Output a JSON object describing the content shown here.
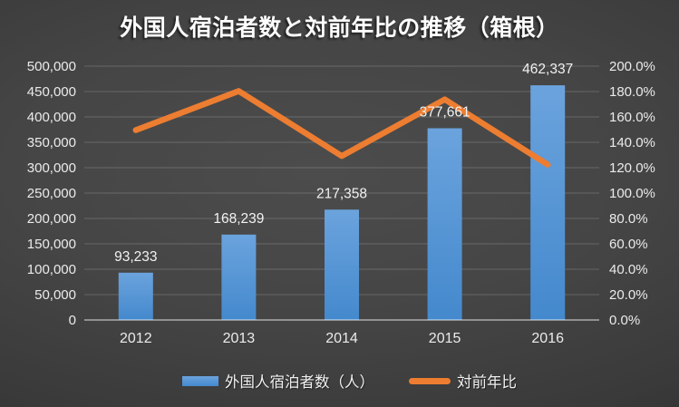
{
  "title": "外国人宿泊者数と対前年比の推移（箱根）",
  "chart_data": {
    "type": "bar",
    "subtype": "combo-bar-line",
    "title": "外国人宿泊者数と対前年比の推移（箱根）",
    "categories": [
      "2012",
      "2013",
      "2014",
      "2015",
      "2016"
    ],
    "series": [
      {
        "name": "外国人宿泊者数（人）",
        "type": "bar",
        "axis": "left",
        "values": [
          93233,
          168239,
          217358,
          377661,
          462337
        ],
        "data_labels": [
          "93,233",
          "168,239",
          "217,358",
          "377,661",
          "462,337"
        ]
      },
      {
        "name": "対前年比",
        "type": "line",
        "axis": "right",
        "values_percent": [
          149.6,
          180.4,
          129.2,
          173.8,
          122.4
        ]
      }
    ],
    "left_axis": {
      "min": 0,
      "max": 500000,
      "step": 50000,
      "tick_labels": [
        "500,000",
        "450,000",
        "400,000",
        "350,000",
        "300,000",
        "250,000",
        "200,000",
        "150,000",
        "100,000",
        "50,000",
        "0"
      ]
    },
    "right_axis": {
      "min": "0.0%",
      "max": "200.0%",
      "step": "20.0%",
      "tick_labels": [
        "200.0%",
        "180.0%",
        "160.0%",
        "140.0%",
        "120.0%",
        "100.0%",
        "80.0%",
        "60.0%",
        "40.0%",
        "20.0%",
        "0.0%"
      ]
    },
    "grid": true,
    "legend_position": "bottom"
  },
  "colors": {
    "bar": "#4f94d9",
    "bar_gradient_top": "#6ba3dd",
    "bar_gradient_bottom": "#4489cd",
    "line": "#ed7d31",
    "gridline": "rgba(255,255,255,0.18)",
    "axis_line": "rgba(255,255,255,0.42)",
    "text": "#ebebeb",
    "background_center": "#4c4c4c",
    "background_edge": "#2b2b2b"
  }
}
